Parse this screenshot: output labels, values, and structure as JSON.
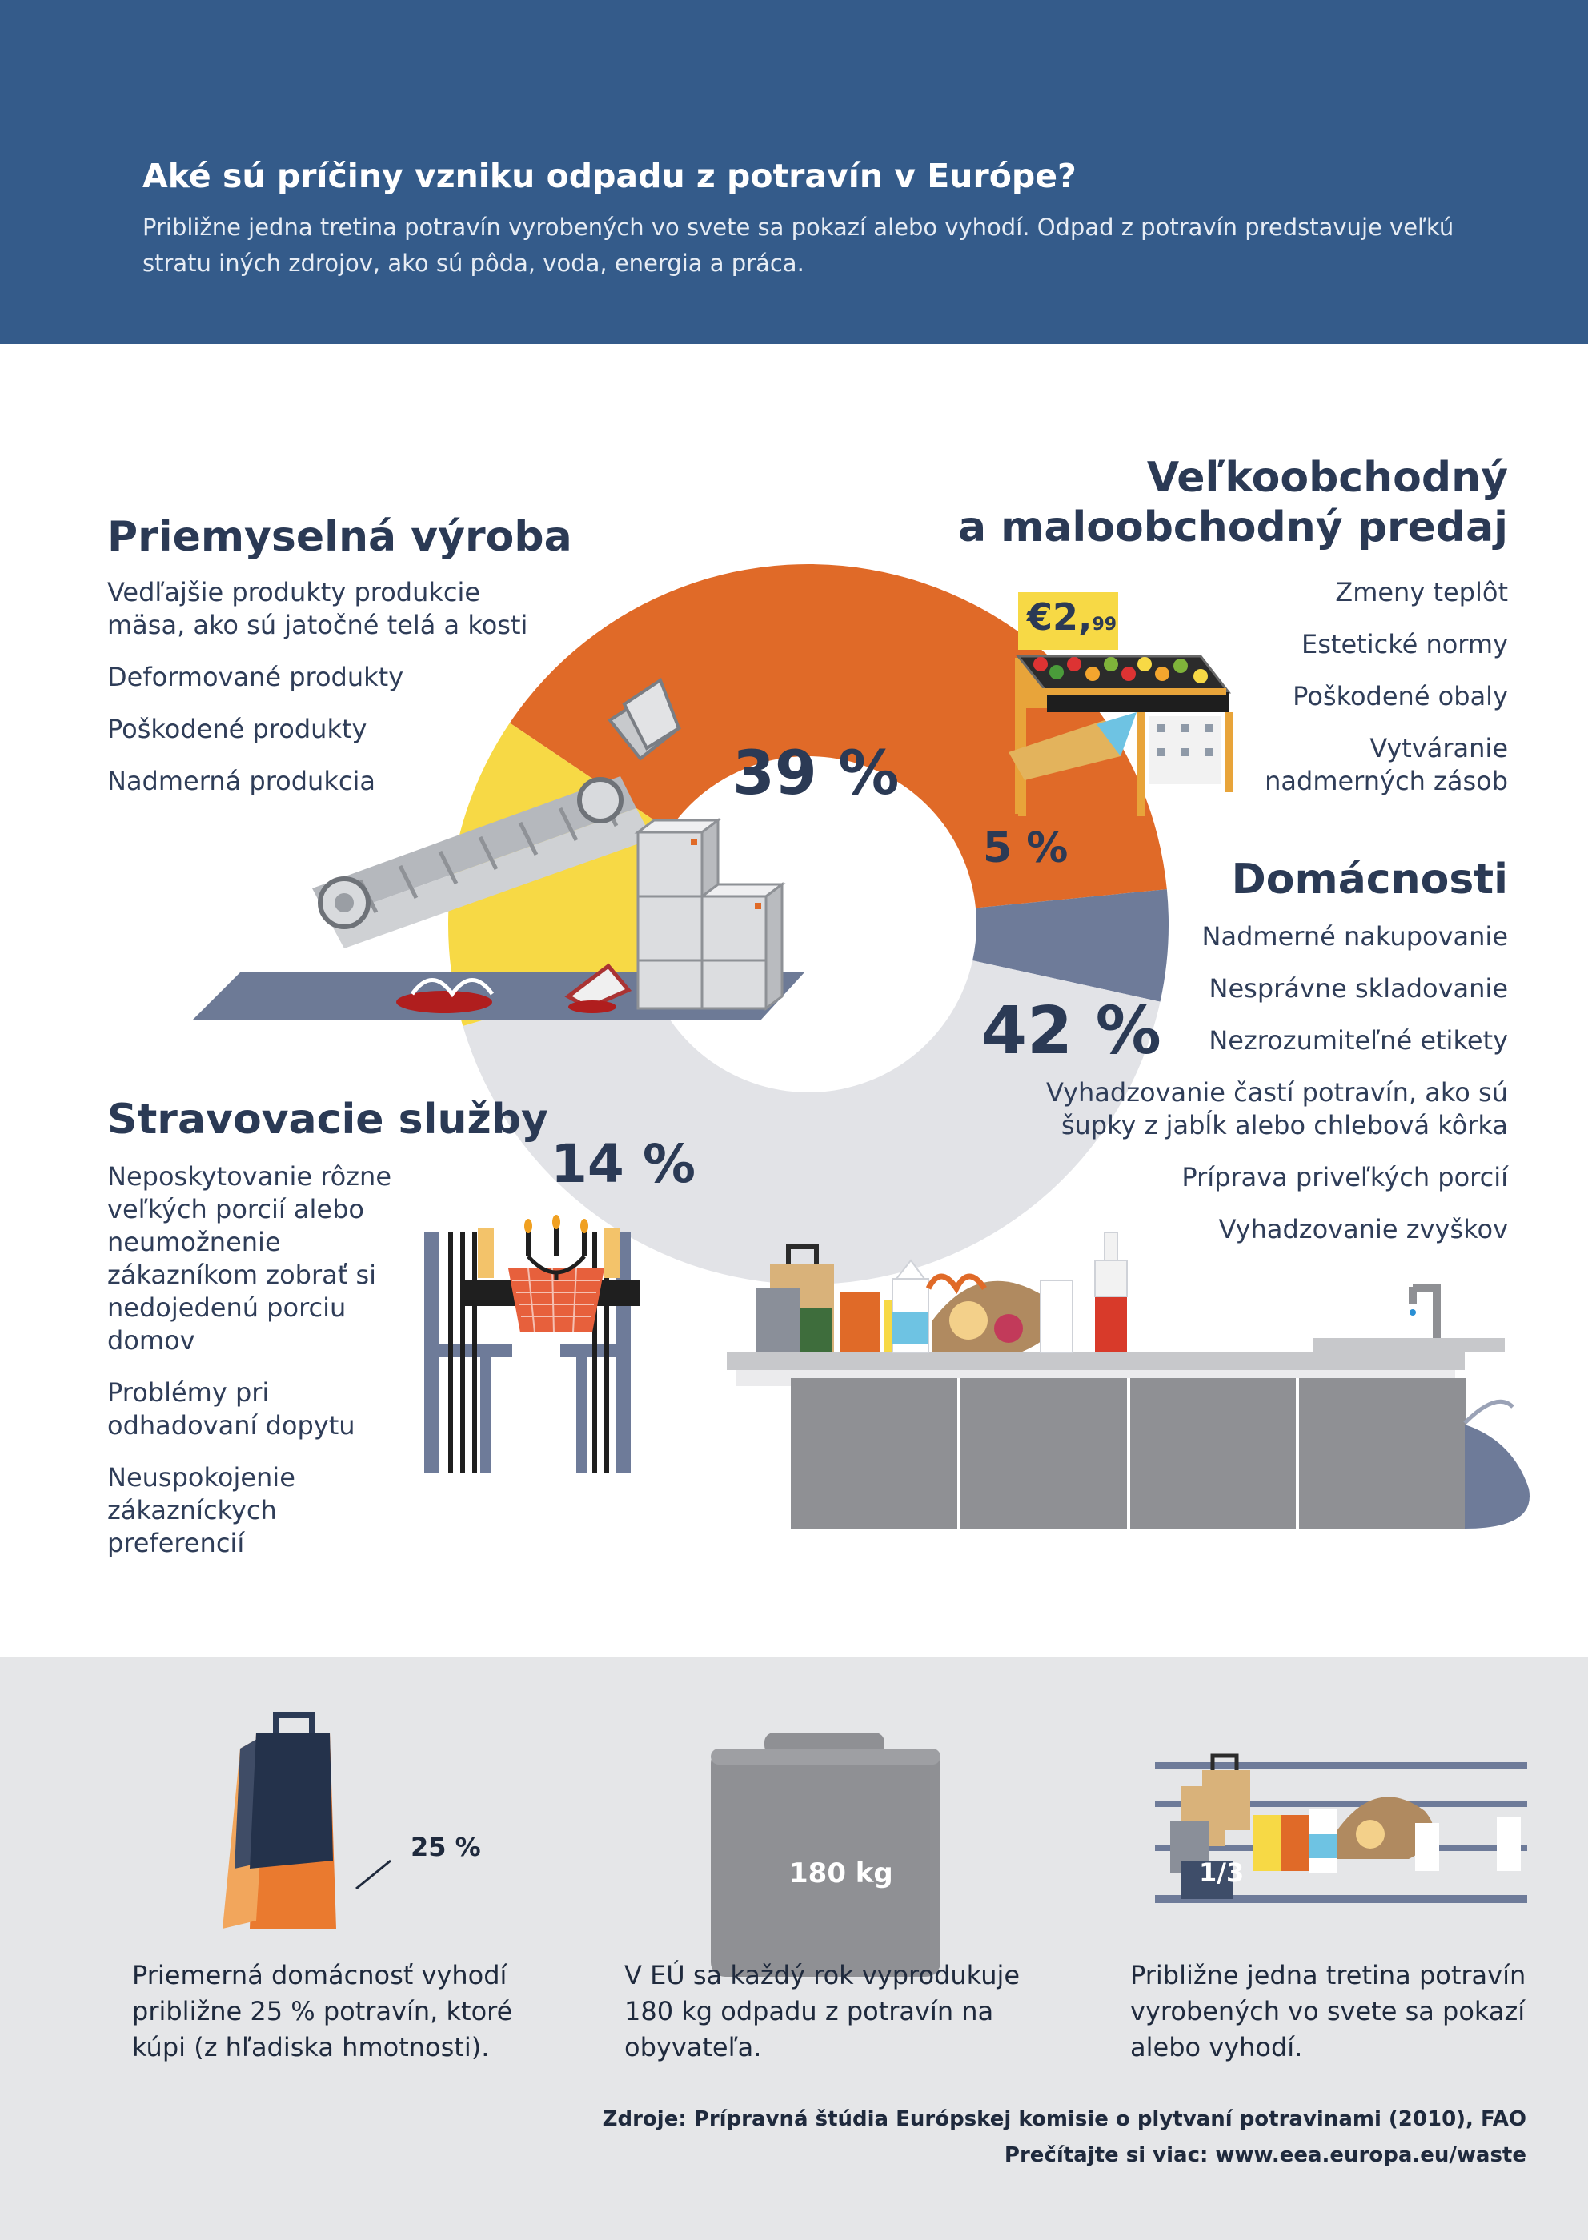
{
  "header": {
    "title": "Aké sú príčiny vzniku odpadu z potravín v Európe?",
    "subtitle": "Približne jedna tretina potravín vyrobených vo svete sa pokazí alebo vyhodí. Odpad z potravín predstavuje veľkú stratu iných zdrojov, ako sú pôda, voda, energia a práca."
  },
  "sections": {
    "industry": {
      "title": "Priemyselná výroba",
      "items": [
        "Vedľajšie produkty produkcie mäsa, ako sú jatočné telá a kosti",
        "Deformované produkty",
        "Poškodené produkty",
        "Nadmerná produkcia"
      ]
    },
    "retail": {
      "title_line1": "Veľkoobchodný",
      "title_line2": "a maloobchodný predaj",
      "items": [
        "Zmeny teplôt",
        "Estetické normy",
        "Poškodené obaly",
        "Vytváranie nadmerných zásob"
      ]
    },
    "households": {
      "title": "Domácnosti",
      "items": [
        "Nadmerné nakupovanie",
        "Nesprávne skladovanie",
        "Nezrozumiteľné etikety",
        "Vyhadzovanie častí potravín, ako sú šupky z jabĺk alebo chlebová kôrka",
        "Príprava priveľkých porcií",
        "Vyhadzovanie zvyškov"
      ]
    },
    "catering": {
      "title": "Stravovacie služby",
      "items": [
        "Neposkytovanie rôzne veľkých porcií alebo neumožnenie zákazníkom zobrať si nedojedenú porciu domov",
        "Problémy pri odhadovaní dopytu",
        "Neuspokojenie zákazníckych preferencií"
      ]
    }
  },
  "chart_data": {
    "type": "pie",
    "categories": [
      "Priemyselná výroba",
      "Veľkoobchodný a maloobchodný predaj",
      "Domácnosti",
      "Stravovacie služby"
    ],
    "values": [
      39,
      5,
      42,
      14
    ],
    "labels": [
      "39 %",
      "5 %",
      "42 %",
      "14 %"
    ],
    "colors": [
      "#e06a28",
      "#6e7b99",
      "#e2e3e7",
      "#f7d945"
    ]
  },
  "price_tag": {
    "main": "€2,",
    "cents": "99"
  },
  "footer": {
    "stat1": {
      "label": "25 %",
      "text": "Priemerná domácnosť vyhodí približne 25 % potravín, ktoré kúpi (z hľadiska hmotnosti)."
    },
    "stat2": {
      "label": "180 kg",
      "text": "V EÚ sa každý rok vyprodukuje 180 kg odpadu z potravín na obyvateľa."
    },
    "stat3": {
      "label": "1/3",
      "text": "Približne jedna tretina potravín vyrobených vo svete sa pokazí alebo vyhodí."
    },
    "source": "Zdroje: Prípravná štúdia Európskej komisie o plytvaní potravinami (2010), FAO",
    "more": "Prečítajte si viac: www.eea.europa.eu/waste"
  }
}
